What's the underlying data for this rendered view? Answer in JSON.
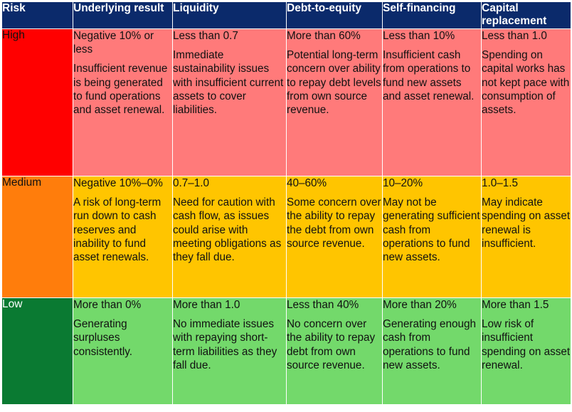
{
  "headers": {
    "risk": "Risk",
    "underlying": "Underlying result",
    "liquidity": "Liquidity",
    "debt": "Debt-to-equity",
    "selffin": "Self-financing",
    "capital": "Capital replacement"
  },
  "rows": {
    "high": {
      "label": "High",
      "underlying": {
        "value": "Negative 10% or less",
        "desc": "Insufficient revenue is being generated to fund operations and asset renewal."
      },
      "liquidity": {
        "value": "Less than 0.7",
        "desc": "Immediate sustainability issues with insufficient current assets to cover liabilities."
      },
      "debt": {
        "value": "More than 60%",
        "desc": "Potential long-term concern over ability to repay debt levels from own source revenue."
      },
      "selffin": {
        "value": "Less than 10%",
        "desc": "Insufficient cash from operations to fund new assets and asset renewal."
      },
      "capital": {
        "value": "Less than 1.0",
        "desc": "Spending on capital works has not kept pace with consumption of assets."
      }
    },
    "medium": {
      "label": "Medium",
      "underlying": {
        "value": "Negative 10%–0%",
        "desc": "A risk of long-term run down to cash reserves and inability to fund asset renewals."
      },
      "liquidity": {
        "value": "0.7–1.0",
        "desc": "Need for caution with cash flow, as issues could arise with meeting obligations as they fall due."
      },
      "debt": {
        "value": "40–60%",
        "desc": "Some concern over the ability to repay the debt from own source revenue."
      },
      "selffin": {
        "value": "10–20%",
        "desc": "May not be generating sufficient cash from operations to fund new assets."
      },
      "capital": {
        "value": "1.0–1.5",
        "desc": "May indicate spending on asset renewal is insufficient."
      }
    },
    "low": {
      "label": "Low",
      "underlying": {
        "value": "More than 0%",
        "desc": "Generating surpluses consistently."
      },
      "liquidity": {
        "value": "More than 1.0",
        "desc": "No immediate issues with repaying short-term liabilities as they fall due."
      },
      "debt": {
        "value": "Less than 40%",
        "desc": "No concern over the ability to repay debt from own source revenue."
      },
      "selffin": {
        "value": "More than 20%",
        "desc": "Generating enough cash from operations to fund new assets."
      },
      "capital": {
        "value": "More than 1.5",
        "desc": "Low risk of insufficient spending on asset renewal."
      }
    }
  }
}
